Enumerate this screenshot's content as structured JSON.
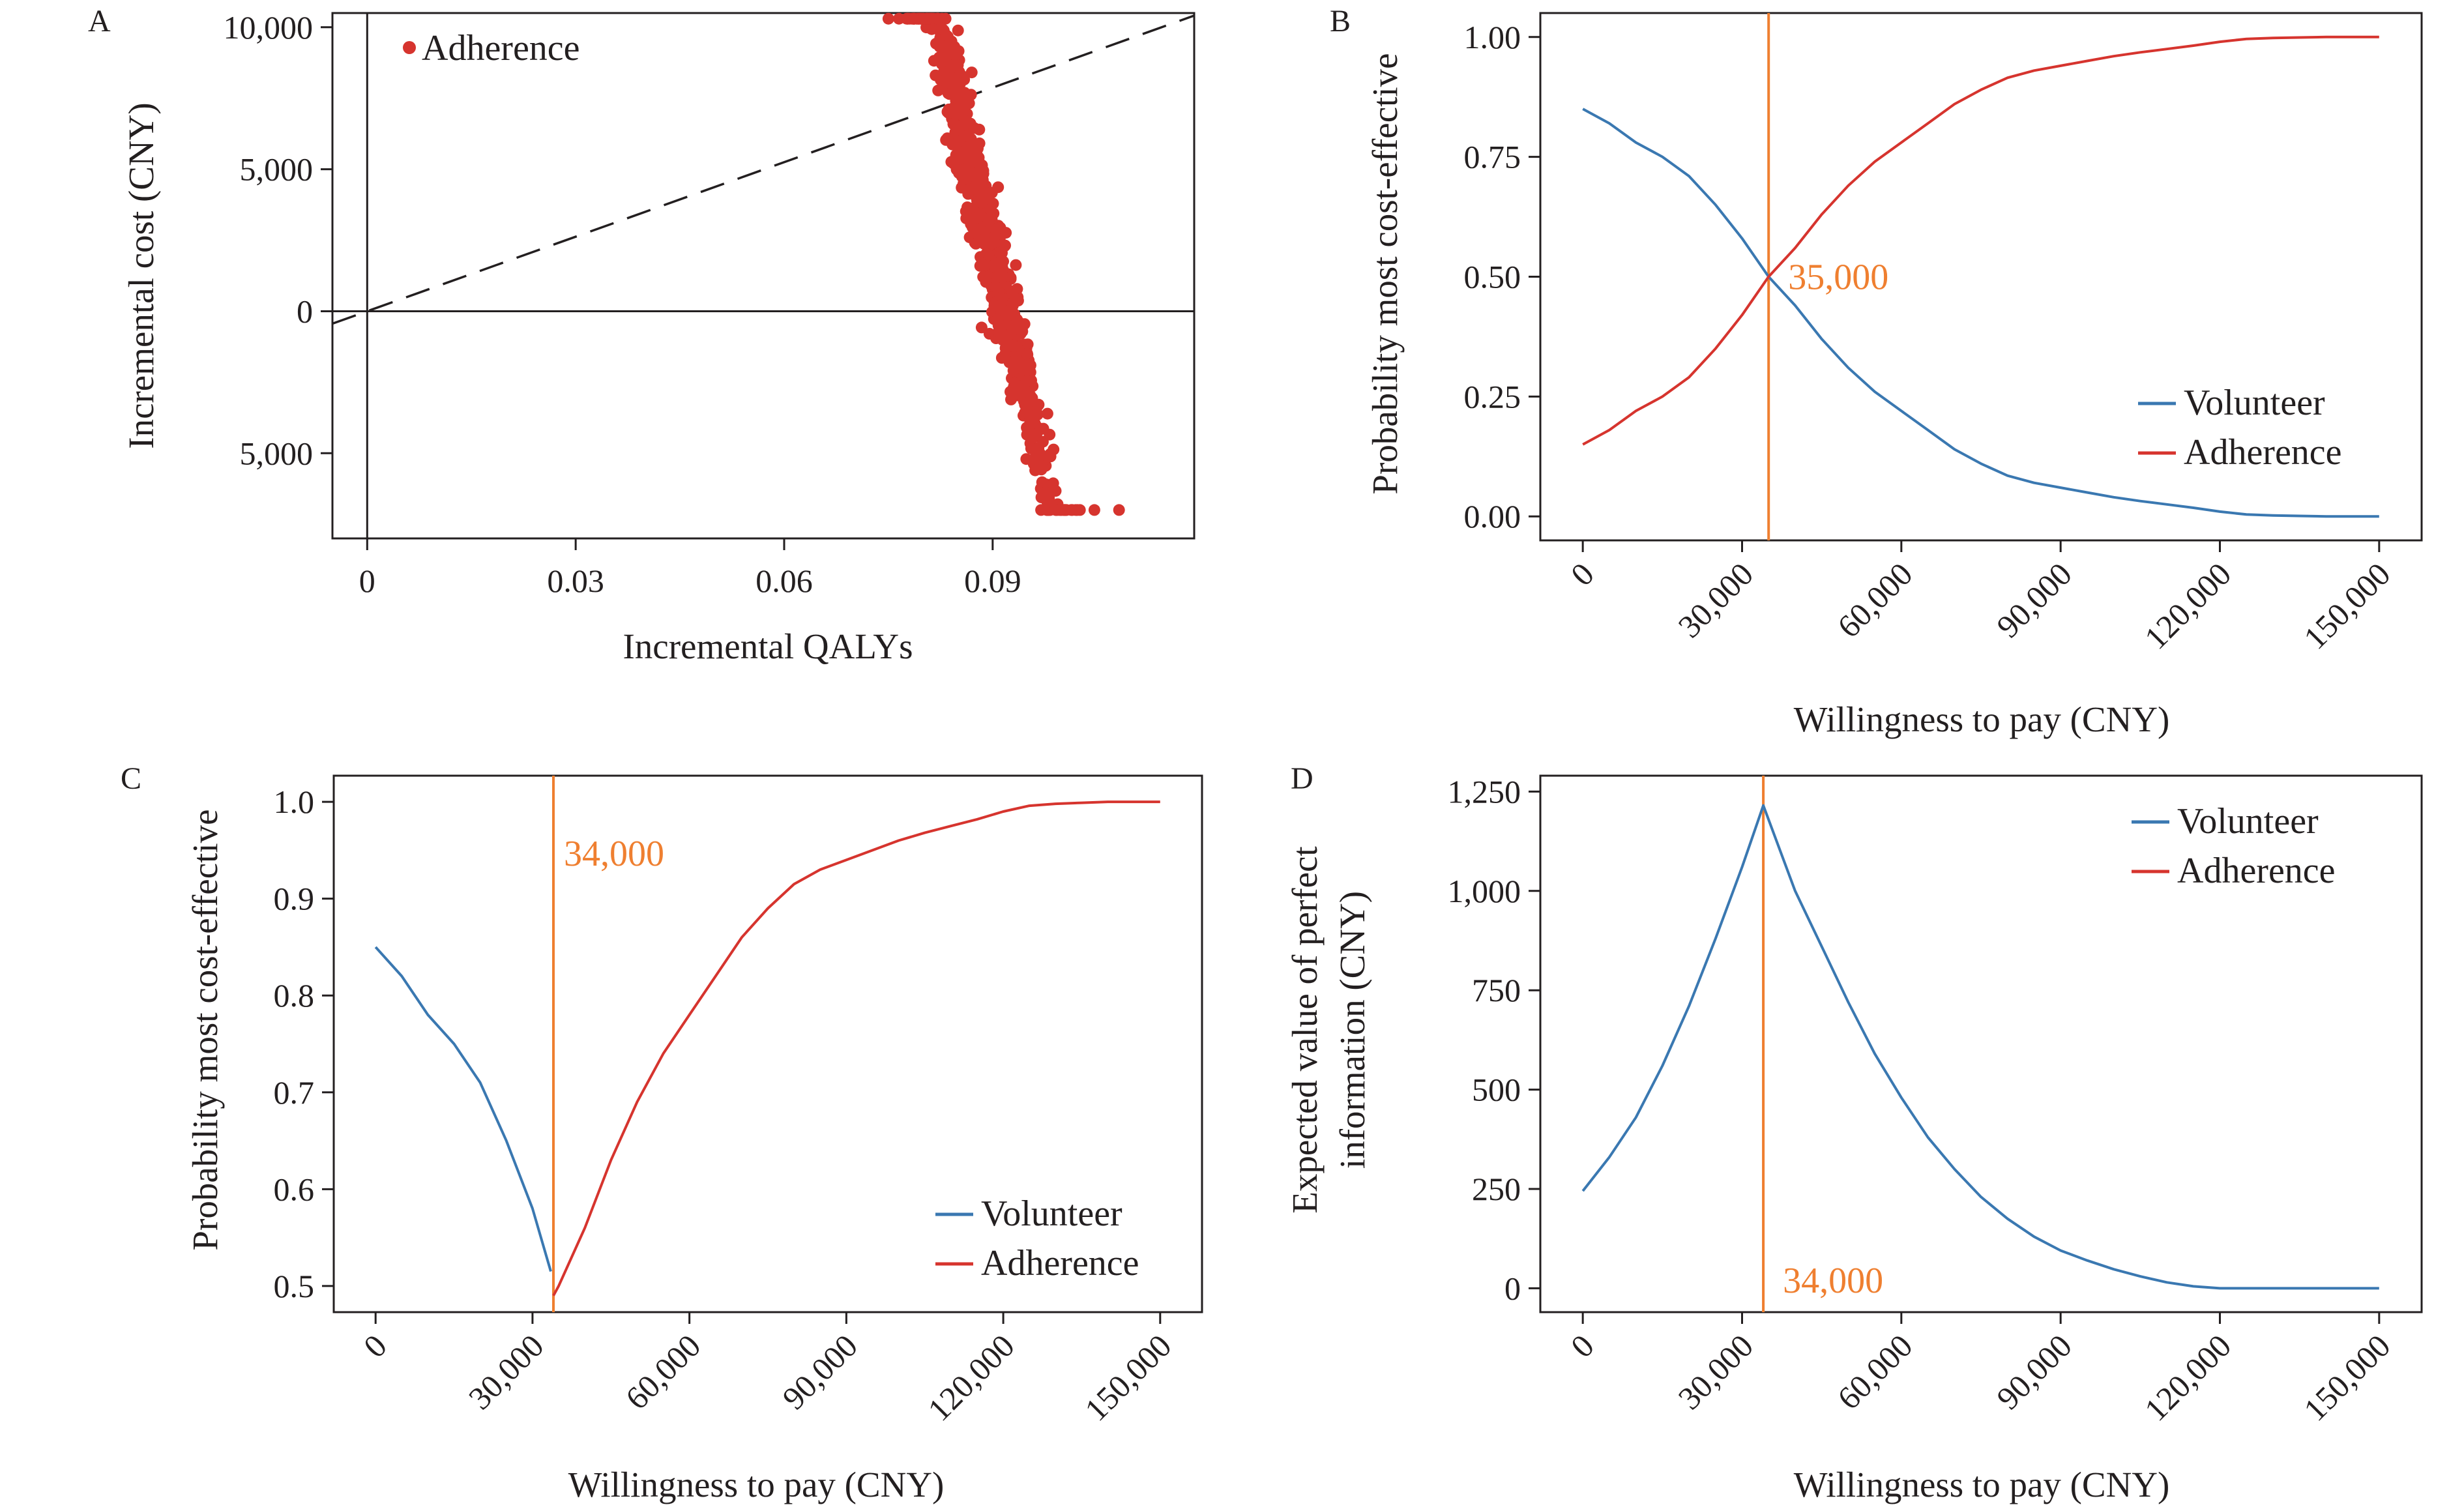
{
  "colors": {
    "volunteer": "#3a78b1",
    "adherence": "#d6342e",
    "threshold": "#ef7f30",
    "ink": "#231f20"
  },
  "chart_data": [
    {
      "panel": "A",
      "type": "scatter",
      "xlabel": "Incremental QALYs",
      "ylabel": "Incremental cost (CNY)",
      "xlim": [
        -0.005,
        0.119
      ],
      "ylim": [
        -8000,
        10500
      ],
      "xticks": [
        0,
        0.03,
        0.06,
        0.09
      ],
      "xtick_labels": [
        "0",
        "0.03",
        "0.06",
        "0.09"
      ],
      "yticks": [
        10000,
        5000,
        0,
        -5000
      ],
      "ytick_labels": [
        "10,000",
        "5,000",
        "0",
        "5,000"
      ],
      "legend": "top-left",
      "series": [
        {
          "name": "Adherence",
          "color": "#d6342e"
        }
      ],
      "reference_line": {
        "style": "dashed",
        "through": [
          [
            0,
            0
          ],
          [
            0.1166,
            10200
          ]
        ]
      },
      "cloud": {
        "center": [
          0.0895,
          2500
        ],
        "n": 900,
        "x_sd": 0.0048,
        "y_sd": 2700,
        "slope": -1000000,
        "x_range": [
          0.075,
          0.109
        ],
        "y_range": [
          -7000,
          10300
        ]
      }
    },
    {
      "panel": "B",
      "type": "line",
      "xlabel": "Willingness to pay (CNY)",
      "ylabel": "Probability most cost-effective",
      "xlim": [
        -8000,
        158000
      ],
      "ylim": [
        -0.05,
        1.05
      ],
      "xticks": [
        0,
        30000,
        60000,
        90000,
        120000,
        150000
      ],
      "xtick_labels": [
        "0",
        "30,000",
        "60,000",
        "90,000",
        "120,000",
        "150,000"
      ],
      "yticks": [
        0,
        0.25,
        0.5,
        0.75,
        1
      ],
      "ytick_labels": [
        "0.00",
        "0.25",
        "0.50",
        "0.75",
        "1.00"
      ],
      "threshold": 35000,
      "threshold_label": "35,000",
      "legend": "bottom-right",
      "series": [
        {
          "name": "Volunteer",
          "color": "#3a78b1",
          "x": [
            0,
            5000,
            10000,
            15000,
            20000,
            25000,
            30000,
            35000,
            40000,
            45000,
            50000,
            55000,
            60000,
            65000,
            70000,
            75000,
            80000,
            85000,
            90000,
            95000,
            100000,
            105000,
            110000,
            115000,
            120000,
            125000,
            130000,
            135000,
            140000,
            145000,
            150000
          ],
          "y": [
            0.85,
            0.82,
            0.78,
            0.75,
            0.71,
            0.65,
            0.58,
            0.5,
            0.44,
            0.37,
            0.31,
            0.26,
            0.22,
            0.18,
            0.14,
            0.11,
            0.085,
            0.07,
            0.06,
            0.05,
            0.04,
            0.032,
            0.025,
            0.018,
            0.01,
            0.004,
            0.002,
            0.001,
            0,
            0,
            0
          ]
        },
        {
          "name": "Adherence",
          "color": "#d6342e",
          "x": [
            0,
            5000,
            10000,
            15000,
            20000,
            25000,
            30000,
            35000,
            40000,
            45000,
            50000,
            55000,
            60000,
            65000,
            70000,
            75000,
            80000,
            85000,
            90000,
            95000,
            100000,
            105000,
            110000,
            115000,
            120000,
            125000,
            130000,
            135000,
            140000,
            145000,
            150000
          ],
          "y": [
            0.15,
            0.18,
            0.22,
            0.25,
            0.29,
            0.35,
            0.42,
            0.5,
            0.56,
            0.63,
            0.69,
            0.74,
            0.78,
            0.82,
            0.86,
            0.89,
            0.915,
            0.93,
            0.94,
            0.95,
            0.96,
            0.968,
            0.975,
            0.982,
            0.99,
            0.996,
            0.998,
            0.999,
            1,
            1,
            1
          ]
        }
      ]
    },
    {
      "panel": "C",
      "type": "line",
      "xlabel": "Willingness to pay (CNY)",
      "ylabel": "Probability most cost-effective",
      "xlim": [
        -8000,
        158000
      ],
      "ylim": [
        0.473,
        1.027
      ],
      "xticks": [
        0,
        30000,
        60000,
        90000,
        120000,
        150000
      ],
      "xtick_labels": [
        "0",
        "30,000",
        "60,000",
        "90,000",
        "120,000",
        "150,000"
      ],
      "yticks": [
        0.5,
        0.6,
        0.7,
        0.8,
        0.9,
        1.0
      ],
      "ytick_labels": [
        "0.5",
        "0.6",
        "0.7",
        "0.8",
        "0.9",
        "1.0"
      ],
      "threshold": 34000,
      "threshold_label": "34,000",
      "legend": "bottom-right",
      "series": [
        {
          "name": "Volunteer",
          "color": "#3a78b1",
          "x": [
            0,
            5000,
            10000,
            15000,
            20000,
            25000,
            30000,
            33500
          ],
          "y": [
            0.85,
            0.82,
            0.78,
            0.75,
            0.71,
            0.65,
            0.58,
            0.515
          ]
        },
        {
          "name": "Adherence",
          "color": "#d6342e",
          "x": [
            34000,
            35000,
            40000,
            45000,
            50000,
            55000,
            60000,
            65000,
            70000,
            75000,
            80000,
            85000,
            90000,
            95000,
            100000,
            105000,
            110000,
            115000,
            120000,
            125000,
            130000,
            135000,
            140000,
            145000,
            150000
          ],
          "y": [
            0.49,
            0.5,
            0.56,
            0.63,
            0.69,
            0.74,
            0.78,
            0.82,
            0.86,
            0.89,
            0.915,
            0.93,
            0.94,
            0.95,
            0.96,
            0.968,
            0.975,
            0.982,
            0.99,
            0.996,
            0.998,
            0.999,
            1,
            1,
            1
          ]
        }
      ]
    },
    {
      "panel": "D",
      "type": "line",
      "xlabel": "Willingness to pay (CNY)",
      "ylabel_lines": [
        "Expected value of perfect",
        "information (CNY)"
      ],
      "xlim": [
        -8000,
        158000
      ],
      "ylim": [
        -60,
        1290
      ],
      "xticks": [
        0,
        30000,
        60000,
        90000,
        120000,
        150000
      ],
      "xtick_labels": [
        "0",
        "30,000",
        "60,000",
        "90,000",
        "120,000",
        "150,000"
      ],
      "yticks": [
        0,
        250,
        500,
        750,
        1000,
        1250
      ],
      "ytick_labels": [
        "0",
        "250",
        "500",
        "750",
        "1,000",
        "1,250"
      ],
      "threshold": 34000,
      "threshold_label": "34,000",
      "legend": "top-right",
      "series": [
        {
          "name": "Volunteer",
          "color": "#3a78b1",
          "x": [
            0,
            5000,
            10000,
            15000,
            20000,
            25000,
            30000,
            34000,
            40000,
            45000,
            50000,
            55000,
            60000,
            65000,
            70000,
            75000,
            80000,
            85000,
            90000,
            95000,
            100000,
            105000,
            110000,
            115000,
            120000,
            125000,
            130000,
            140000,
            150000
          ],
          "y": [
            245,
            330,
            430,
            560,
            710,
            880,
            1060,
            1215,
            1000,
            860,
            720,
            590,
            480,
            380,
            300,
            230,
            175,
            130,
            95,
            70,
            48,
            30,
            15,
            5,
            0,
            0,
            0,
            0,
            0
          ]
        },
        {
          "name": "Adherence",
          "color": "#d6342e",
          "x": [],
          "y": []
        }
      ]
    }
  ]
}
